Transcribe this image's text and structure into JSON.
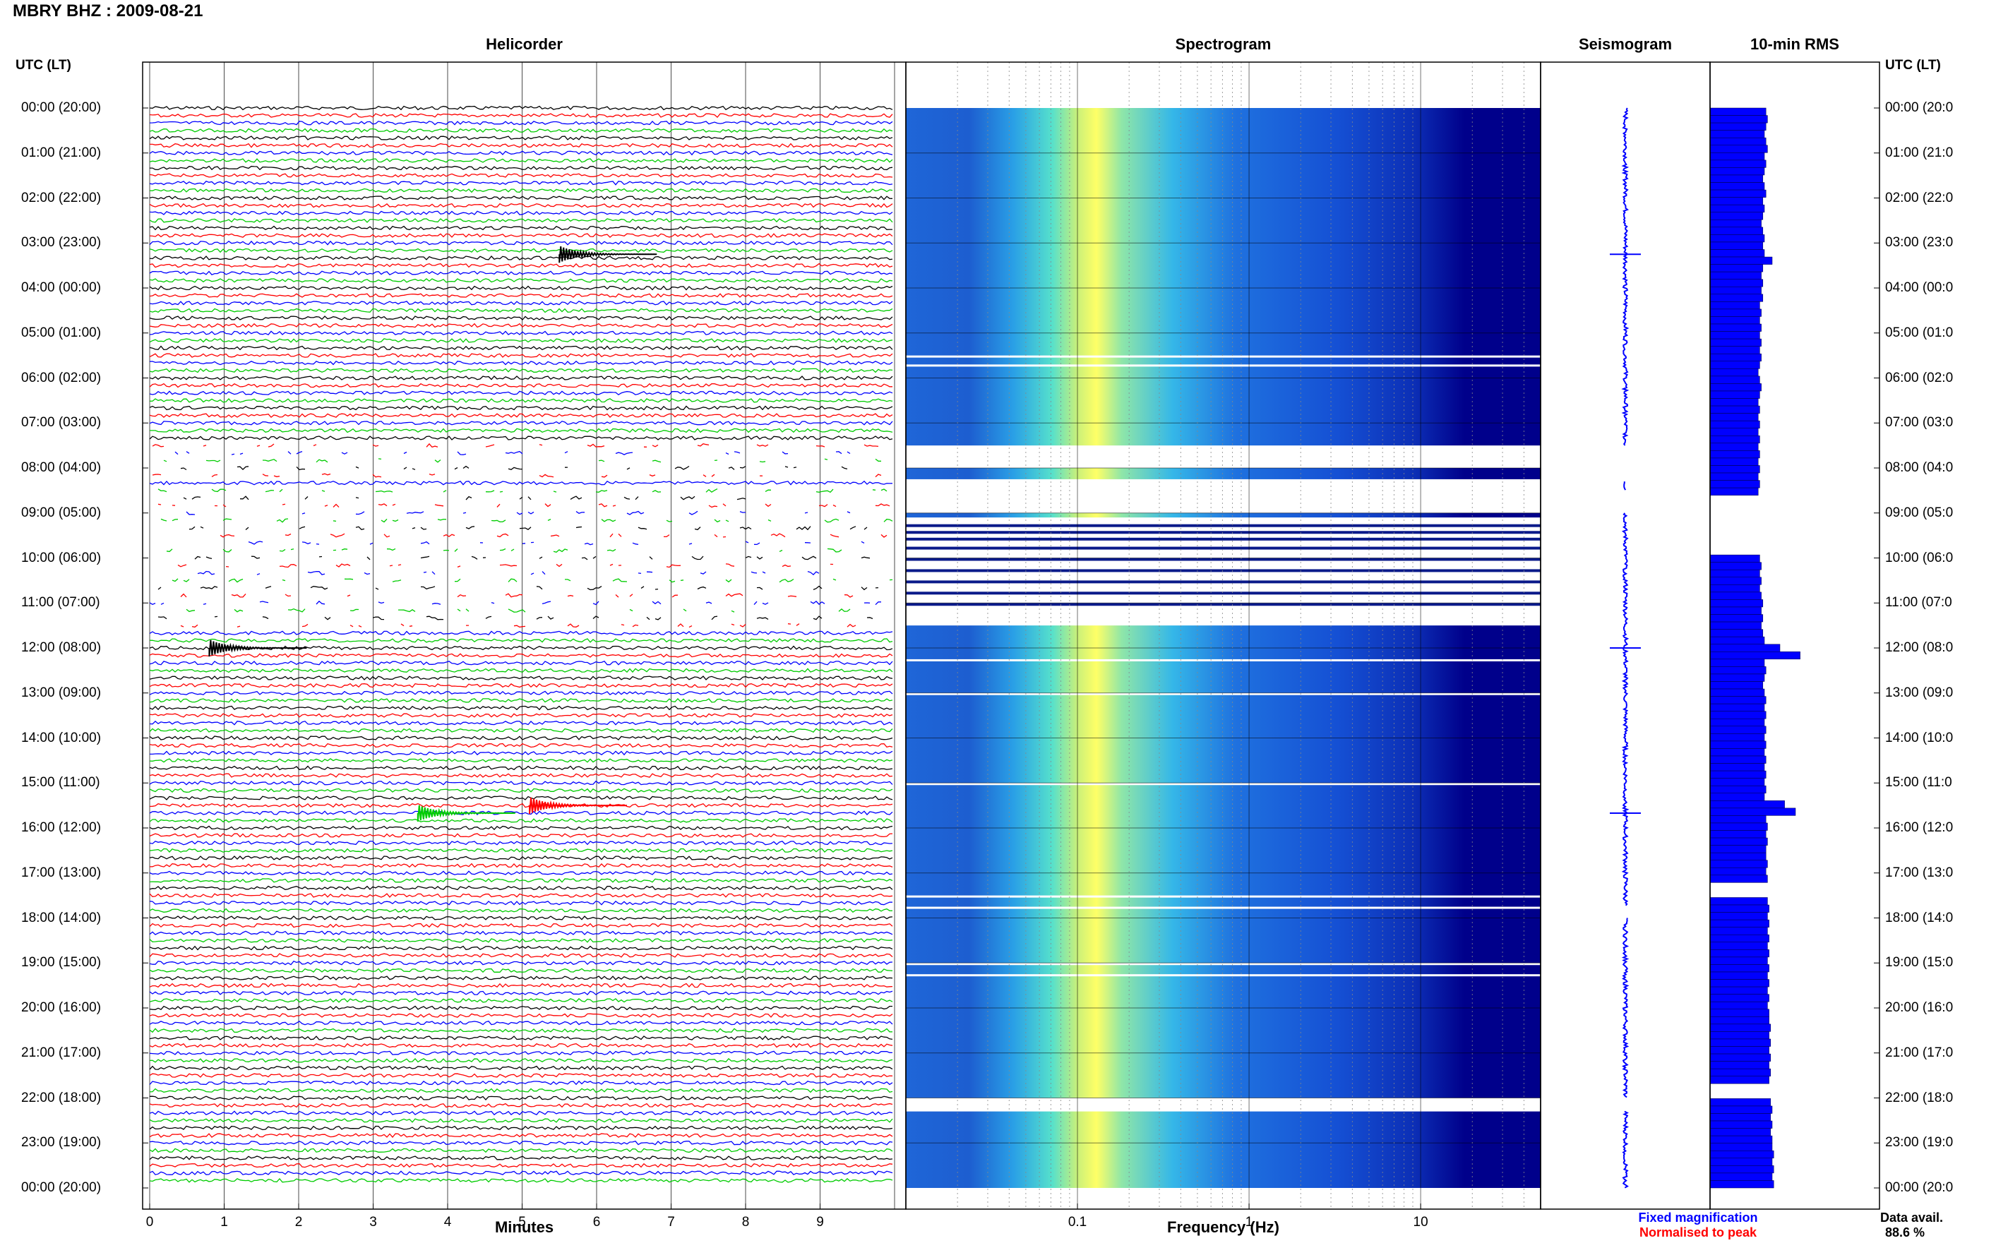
{
  "header": {
    "title": "MBRY BHZ : 2009-08-21",
    "panels": [
      "Helicorder",
      "Spectrogram",
      "Seismogram",
      "10-min RMS"
    ],
    "tz_left": "UTC (LT)",
    "tz_right": "UTC (LT)"
  },
  "time_labels_left": [
    "00:00 (20:00)",
    "01:00 (21:00)",
    "02:00 (22:00)",
    "03:00 (23:00)",
    "04:00 (00:00)",
    "05:00 (01:00)",
    "06:00 (02:00)",
    "07:00 (03:00)",
    "08:00 (04:00)",
    "09:00 (05:00)",
    "10:00 (06:00)",
    "11:00 (07:00)",
    "12:00 (08:00)",
    "13:00 (09:00)",
    "14:00 (10:00)",
    "15:00 (11:00)",
    "16:00 (12:00)",
    "17:00 (13:00)",
    "18:00 (14:00)",
    "19:00 (15:00)",
    "20:00 (16:00)",
    "21:00 (17:00)",
    "22:00 (18:00)",
    "23:00 (19:00)",
    "00:00 (20:00)"
  ],
  "time_labels_right": [
    "00:00 (20:0",
    "01:00 (21:0",
    "02:00 (22:0",
    "03:00 (23:0",
    "04:00 (00:0",
    "05:00 (01:0",
    "06:00 (02:0",
    "07:00 (03:0",
    "08:00 (04:0",
    "09:00 (05:0",
    "10:00 (06:0",
    "11:00 (07:0",
    "12:00 (08:0",
    "13:00 (09:0",
    "14:00 (10:0",
    "15:00 (11:0",
    "16:00 (12:0",
    "17:00 (13:0",
    "18:00 (14:0",
    "19:00 (15:0",
    "20:00 (16:0",
    "21:00 (17:0",
    "22:00 (18:0",
    "23:00 (19:0",
    "00:00 (20:0"
  ],
  "axes": {
    "minutes_title": "Minutes",
    "frequency_title": "Frequency (Hz)"
  },
  "legend": {
    "fixed": "Fixed magnification",
    "normalised": "Normalised to peak"
  },
  "data_availability": {
    "label": "Data avail.",
    "value": "88.6 %"
  },
  "colors": {
    "trace_cycle": [
      "#000000",
      "#ff0000",
      "#0000ff",
      "#00cc00"
    ],
    "fixed_magnification": "#0000ff",
    "normalised": "#ff0000",
    "rms_bar": "#0000ff",
    "spectrogram_low": "#00008b",
    "spectrogram_high": "#ffff66"
  },
  "chart_data": [
    {
      "type": "line",
      "name": "helicorder",
      "title": "Helicorder",
      "xlabel": "Minutes",
      "x_ticks": [
        0,
        1,
        2,
        3,
        4,
        5,
        6,
        7,
        8,
        9
      ],
      "xlim": [
        0,
        10
      ],
      "rows_per_hour": 6,
      "row_minutes": 10,
      "gaps_hours": [
        [
          7.5,
          8.3
        ],
        [
          8.5,
          11.5
        ]
      ],
      "events": [
        {
          "hour": 3.25,
          "minute": 5.5,
          "color": "#000000",
          "label": ""
        },
        {
          "hour": 12.0,
          "minute": 0.8,
          "color": "#000000",
          "label": ""
        },
        {
          "hour": 15.5,
          "minute": 5.1,
          "color": "#ff0000",
          "label": ""
        },
        {
          "hour": 15.67,
          "minute": 3.6,
          "color": "#00cc00",
          "label": ""
        }
      ]
    },
    {
      "type": "heatmap",
      "name": "spectrogram",
      "title": "Spectrogram",
      "xlabel": "Frequency (Hz)",
      "x_scale": "log",
      "xlim": [
        0.01,
        50
      ],
      "x_tick_labels": [
        "0.1",
        "1",
        "10"
      ],
      "x_ticks": [
        0.1,
        1,
        10
      ],
      "peak_frequency_hz": 0.25,
      "ylim_hours": [
        0,
        24
      ],
      "gaps_hours": [
        [
          7.5,
          8.0
        ],
        [
          8.25,
          9.0
        ],
        [
          9.1,
          11.5
        ],
        [
          22.0,
          22.3
        ]
      ]
    },
    {
      "type": "line",
      "name": "seismogram",
      "title": "Seismogram",
      "events_hours": [
        3.25,
        12.0,
        15.67
      ],
      "gaps_hours": [
        [
          7.5,
          8.3
        ],
        [
          8.5,
          9.0
        ],
        [
          17.75,
          18.0
        ],
        [
          22.0,
          22.3
        ]
      ]
    },
    {
      "type": "bar",
      "name": "rms",
      "title": "10-min RMS",
      "orientation": "horizontal",
      "interval_minutes": 10,
      "values": [
        0.36,
        0.37,
        0.36,
        0.35,
        0.36,
        0.37,
        0.35,
        0.36,
        0.35,
        0.34,
        0.35,
        0.36,
        0.34,
        0.35,
        0.34,
        0.33,
        0.34,
        0.35,
        0.34,
        0.35,
        0.4,
        0.34,
        0.33,
        0.34,
        0.33,
        0.34,
        0.32,
        0.33,
        0.32,
        0.33,
        0.32,
        0.33,
        0.32,
        0.33,
        0.32,
        0.31,
        0.32,
        0.33,
        0.32,
        0.31,
        0.32,
        0.31,
        0.32,
        0.31,
        0.32,
        0.31,
        0.32,
        0.31,
        0.32,
        0.31,
        0.32,
        0.31,
        0.0,
        0.0,
        0.0,
        0.0,
        0.0,
        0.0,
        0.0,
        0.0,
        0.32,
        0.33,
        0.32,
        0.33,
        0.32,
        0.33,
        0.34,
        0.33,
        0.34,
        0.33,
        0.34,
        0.35,
        0.45,
        0.58,
        0.35,
        0.36,
        0.35,
        0.34,
        0.35,
        0.36,
        0.35,
        0.36,
        0.35,
        0.36,
        0.35,
        0.36,
        0.35,
        0.36,
        0.35,
        0.36,
        0.35,
        0.36,
        0.35,
        0.48,
        0.55,
        0.36,
        0.37,
        0.36,
        0.37,
        0.36,
        0.36,
        0.37,
        0.36,
        0.37,
        0.0,
        0.0,
        0.37,
        0.38,
        0.37,
        0.38,
        0.37,
        0.38,
        0.37,
        0.38,
        0.37,
        0.38,
        0.37,
        0.38,
        0.37,
        0.38,
        0.37,
        0.38,
        0.38,
        0.39,
        0.38,
        0.39,
        0.38,
        0.39,
        0.38,
        0.39,
        0.38,
        0.0,
        0.0,
        0.39,
        0.4,
        0.39,
        0.4,
        0.39,
        0.4,
        0.4,
        0.41,
        0.4,
        0.41,
        0.4,
        0.41
      ]
    }
  ]
}
